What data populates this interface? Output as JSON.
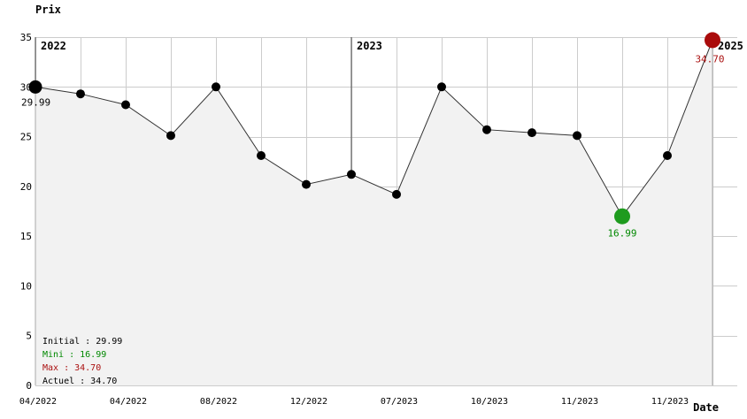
{
  "title": "Prix",
  "x_axis_title": "Date",
  "colors": {
    "text": "#000000",
    "grid": "#cccccc",
    "line": "#333333",
    "fill": "#f2f2f2",
    "fill_edge": "#aaaaaa",
    "dot": "#000000",
    "year_line": "#444444",
    "min_dot": "#1e9b1e",
    "min_text": "#008800",
    "max_dot": "#aa0b0b",
    "max_text": "#aa1111"
  },
  "chart_data": {
    "type": "line",
    "title": "Prix",
    "xlabel": "Date",
    "ylabel": "Prix",
    "ylim": [
      0,
      35
    ],
    "y_ticks": [
      0,
      5,
      10,
      15,
      20,
      25,
      30,
      35
    ],
    "grid": "on",
    "values": [
      29.99,
      29.3,
      28.2,
      25.1,
      30.0,
      23.1,
      20.2,
      21.2,
      19.2,
      30.0,
      25.7,
      25.4,
      25.1,
      16.99,
      23.1,
      34.7
    ],
    "x_tick_labels": [
      {
        "index": 0,
        "label": "04/2022"
      },
      {
        "index": 2,
        "label": "04/2022"
      },
      {
        "index": 4,
        "label": "08/2022"
      },
      {
        "index": 6,
        "label": "12/2022"
      },
      {
        "index": 8,
        "label": "07/2023"
      },
      {
        "index": 10,
        "label": "10/2023"
      },
      {
        "index": 12,
        "label": "11/2023"
      },
      {
        "index": 14,
        "label": "11/2023"
      }
    ],
    "year_markers": [
      {
        "index": 0,
        "label": "2022"
      },
      {
        "index": 7,
        "label": "2023"
      },
      {
        "index": 15,
        "label": "2025"
      }
    ],
    "special_points": {
      "initial": {
        "index": 0,
        "value_label": "29.99"
      },
      "min": {
        "index": 13,
        "value_label": "16.99"
      },
      "max": {
        "index": 15,
        "value_label": "34.70"
      }
    }
  },
  "legend": {
    "items": [
      {
        "id": "initial",
        "text": "Initial : 29.99",
        "color": "#000000"
      },
      {
        "id": "mini",
        "text": "Mini : 16.99",
        "color": "#008800"
      },
      {
        "id": "max",
        "text": "Max : 34.70",
        "color": "#aa1111"
      },
      {
        "id": "actuel",
        "text": "Actuel : 34.70",
        "color": "#000000"
      }
    ]
  }
}
